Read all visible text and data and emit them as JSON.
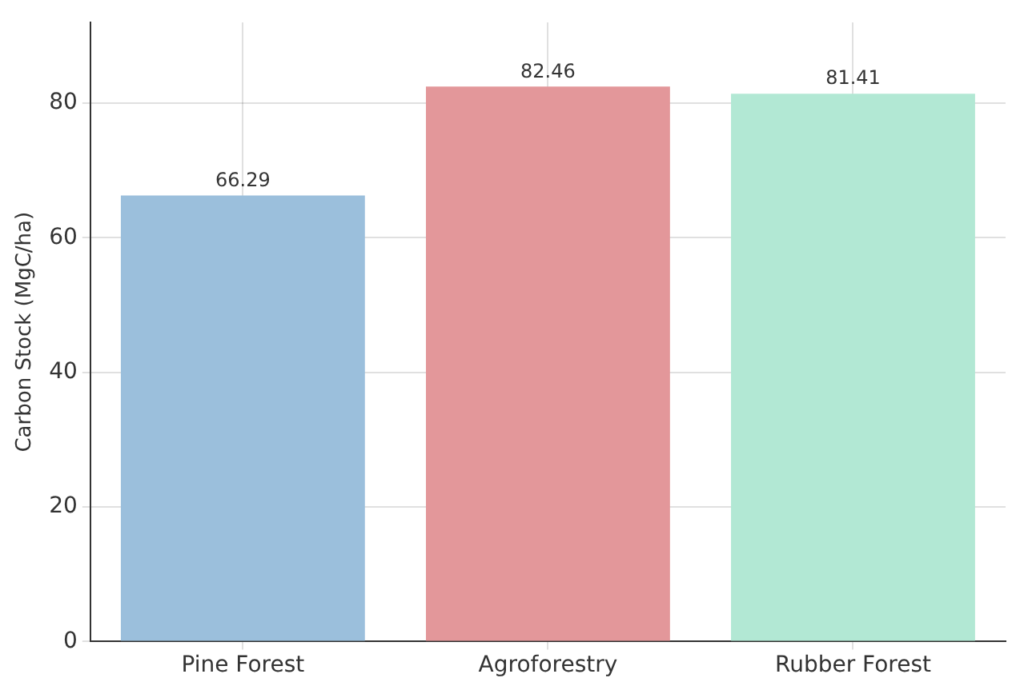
{
  "chart_data": {
    "type": "bar",
    "ylabel": "Carbon Stock (MgC/ha)",
    "categories": [
      "Pine Forest",
      "Agroforestry",
      "Rubber Forest"
    ],
    "values": [
      66.29,
      82.46,
      81.41
    ],
    "colors": [
      "#9bbfdc",
      "#e3979a",
      "#b2e8d4"
    ],
    "ylim": [
      0,
      92
    ],
    "yticks": [
      0,
      20,
      40,
      60,
      80
    ],
    "grid": true,
    "data_labels": true
  }
}
